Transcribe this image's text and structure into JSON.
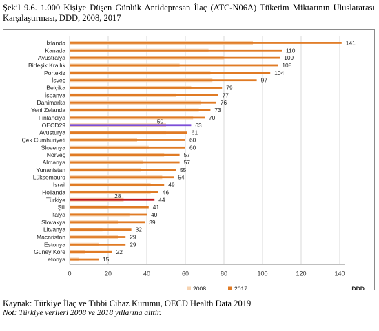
{
  "caption": "Şekil 9.6. 1.000 Kişiye Düşen Günlük Antidepresan İlaç (ATC-N06A) Tüketim Miktarının Uluslararası Karşılaştırması, DDD, 2008, 2017",
  "source": "Kaynak: Türkiye İlaç ve Tıbbi Cihaz Kurumu, OECD Health Data 2019",
  "note": "Not: Türkiye verileri 2008 ve 2018 yıllarına aittir.",
  "colors": {
    "bar_2017": "#e07b25",
    "bar_2008": "#f6d3b1",
    "oecd": "#7b4ed8",
    "turkey": "#c0161c",
    "grid": "#d9d9d9"
  },
  "chart_data": {
    "type": "bar",
    "orientation": "horizontal",
    "xlabel": "DDD",
    "xlim": [
      0,
      140
    ],
    "xticks": [
      0,
      20,
      40,
      60,
      80,
      100,
      120,
      140
    ],
    "grid": true,
    "legend": {
      "position": "bottom",
      "entries": [
        "2008",
        "2017"
      ]
    },
    "categories": [
      "İzlanda",
      "Kanada",
      "Avustralya",
      "Birleşik Krallık",
      "Portekiz",
      "İsveç",
      "Belçika",
      "İspanya",
      "Danimarka",
      "Yeni Zelanda",
      "Finlandiya",
      "OECD29",
      "Avusturya",
      "Çek Cumhuriyeti",
      "Slovenya",
      "Norveç",
      "Almanya",
      "Yunanistan",
      "Lüksemburg",
      "İsrail",
      "Hollanda",
      "Türkiye",
      "Şili",
      "İtalya",
      "Slovakya",
      "Litvanya",
      "Macaristan",
      "Estonya",
      "Güney Kore",
      "Letonya"
    ],
    "series": [
      {
        "name": "2008",
        "values": [
          95,
          72,
          80,
          57,
          73,
          74,
          63,
          55,
          68,
          67,
          64,
          50,
          50,
          35,
          41,
          49,
          38,
          37,
          48,
          42,
          42,
          28,
          20,
          31,
          25,
          17,
          25,
          15,
          8,
          5
        ]
      },
      {
        "name": "2017",
        "values": [
          141,
          110,
          109,
          108,
          104,
          97,
          79,
          77,
          76,
          73,
          70,
          63,
          61,
          60,
          60,
          57,
          57,
          55,
          54,
          49,
          46,
          44,
          41,
          40,
          39,
          32,
          29,
          29,
          22,
          15
        ]
      }
    ],
    "labeled_2008": {
      "OECD29": 50,
      "Türkiye": 28
    },
    "highlight": {
      "OECD29": "oecd",
      "Türkiye": "turkey"
    }
  }
}
